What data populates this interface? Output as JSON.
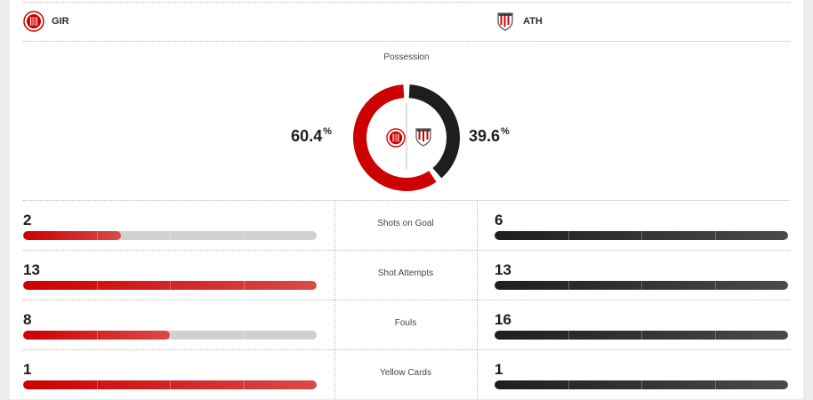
{
  "home": {
    "abbr": "GIR",
    "logo": "girona-crest-icon",
    "color": "#cc0000"
  },
  "away": {
    "abbr": "ATH",
    "logo": "athletic-crest-icon",
    "color": "#1e1e1e"
  },
  "possession": {
    "title": "Possession",
    "home_value": "60.4",
    "away_value": "39.6",
    "unit": "%",
    "home_share": 0.604
  },
  "stats": [
    {
      "label": "Shots on Goal",
      "home": "2",
      "away": "6",
      "home_fill": 0.333,
      "away_fill": 1.0
    },
    {
      "label": "Shot Attempts",
      "home": "13",
      "away": "13",
      "home_fill": 1.0,
      "away_fill": 1.0
    },
    {
      "label": "Fouls",
      "home": "8",
      "away": "16",
      "home_fill": 0.5,
      "away_fill": 1.0
    },
    {
      "label": "Yellow Cards",
      "home": "1",
      "away": "1",
      "home_fill": 1.0,
      "away_fill": 1.0
    }
  ]
}
